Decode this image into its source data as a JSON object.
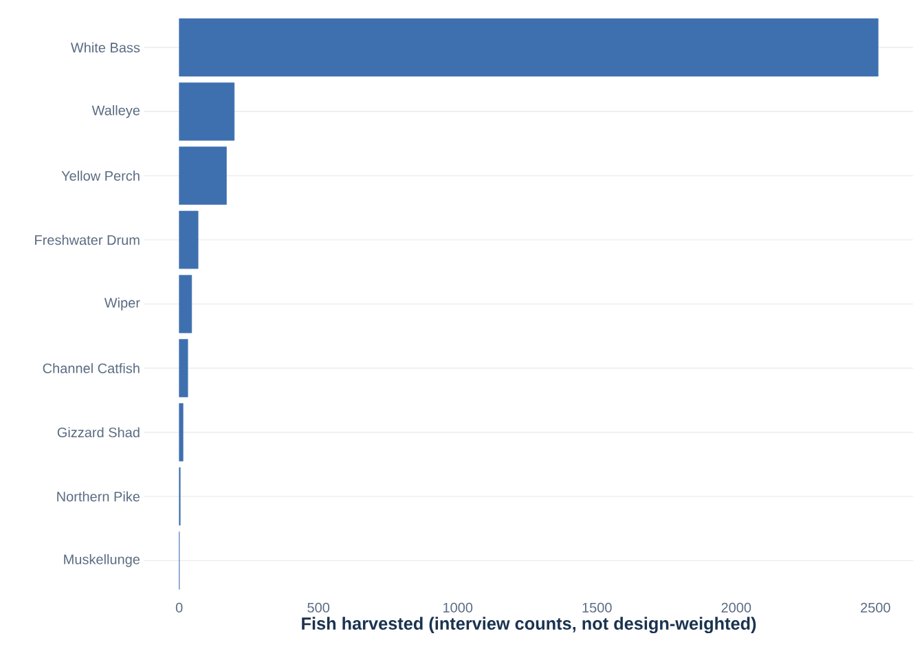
{
  "chart_data": {
    "type": "bar",
    "orientation": "horizontal",
    "xlabel": "Fish harvested (interview counts, not design-weighted)",
    "categories": [
      "White Bass",
      "Walleye",
      "Yellow Perch",
      "Freshwater Drum",
      "Wiper",
      "Channel Catfish",
      "Gizzard Shad",
      "Northern Pike",
      "Muskellunge"
    ],
    "values": [
      2510,
      198,
      170,
      68,
      45,
      31,
      14,
      4,
      1
    ],
    "color": "#3e70b0",
    "xlim": [
      -125,
      2635
    ],
    "xticks": [
      0,
      500,
      1000,
      1500,
      2000,
      2500
    ],
    "grid": "y"
  }
}
